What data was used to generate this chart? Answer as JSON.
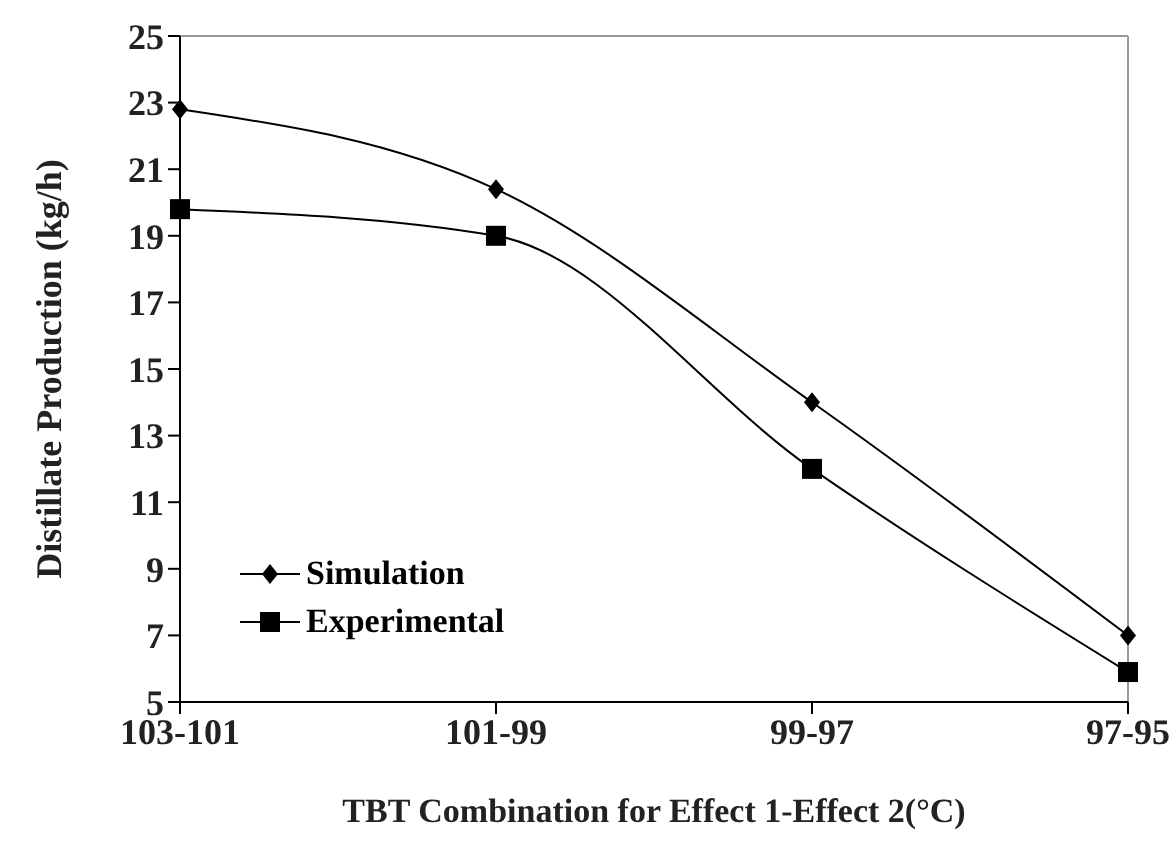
{
  "chart_data": {
    "type": "line",
    "xlabel": "TBT Combination for Effect 1-Effect 2(°C)",
    "ylabel": "Distillate Production (kg/h)",
    "categories": [
      "103-101",
      "101-99",
      "99-97",
      "97-95"
    ],
    "series": [
      {
        "name": "Simulation",
        "color": "#000000",
        "marker": "diamond",
        "values": [
          22.8,
          20.4,
          14.0,
          7.0
        ]
      },
      {
        "name": "Experimental",
        "color": "#000000",
        "marker": "square",
        "values": [
          19.8,
          19.0,
          12.0,
          5.9
        ]
      }
    ],
    "ylim": [
      5,
      25
    ],
    "yticks": [
      5,
      7,
      9,
      11,
      13,
      15,
      17,
      19,
      21,
      23,
      25
    ],
    "legend": "bottom left"
  }
}
